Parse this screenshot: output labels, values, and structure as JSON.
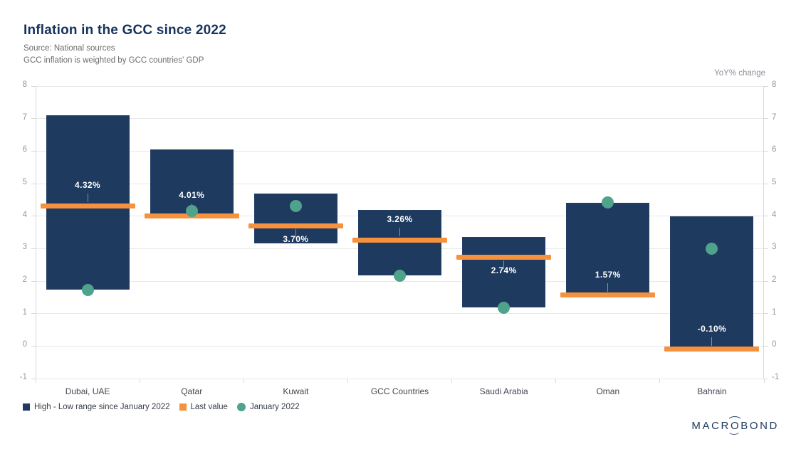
{
  "header": {
    "title": "Inflation in the GCC since 2022",
    "source_line1": "Source: National sources",
    "source_line2": "GCC inflation is weighted by GCC countries' GDP"
  },
  "axis_unit_label": "YoY% change",
  "colors": {
    "bar": "#1E3A5F",
    "bar_edge": "#34517C",
    "last_value": "#F6923E",
    "jan_2022": "#4FA28C",
    "title": "#16335E",
    "subtitle": "#6C6C6C",
    "grid": "#E8E8E8",
    "axis_line": "#D9D9D9",
    "y_tick_text": "#95989F",
    "x_tick_text": "#42464E",
    "value_label_text": "#FFFFFF",
    "connector": "#8A8F99",
    "legend_text": "#363C45",
    "logo": "#1E3A5F"
  },
  "chart_data": {
    "type": "bar",
    "subtype": "high-low-range",
    "title": "Inflation in the GCC since 2022",
    "ylabel": "YoY% change",
    "ylim": [
      -1,
      8
    ],
    "yticks": [
      8,
      7,
      6,
      5,
      4,
      3,
      2,
      1,
      0,
      -1
    ],
    "grid": true,
    "legend_position": "bottom-left",
    "categories": [
      "Dubai, UAE",
      "Qatar",
      "Kuwait",
      "GCC Countries",
      "Saudi Arabia",
      "Oman",
      "Bahrain"
    ],
    "series": [
      {
        "name": "High - Low range since January 2022",
        "type": "range-bar",
        "high": [
          7.1,
          6.05,
          4.7,
          4.2,
          3.35,
          4.4,
          4.0
        ],
        "low": [
          1.73,
          4.03,
          3.17,
          2.17,
          1.2,
          1.62,
          -0.05
        ]
      },
      {
        "name": "Last value",
        "type": "level-marker",
        "values": [
          4.32,
          4.01,
          3.7,
          3.26,
          2.74,
          1.57,
          -0.1
        ],
        "labels": [
          "4.32%",
          "4.01%",
          "3.70%",
          "3.26%",
          "2.74%",
          "1.57%",
          "-0.10%"
        ],
        "label_position": [
          "above",
          "above",
          "below",
          "above",
          "below",
          "above",
          "above"
        ]
      },
      {
        "name": "January 2022",
        "type": "point",
        "values": [
          1.73,
          4.15,
          4.3,
          2.16,
          1.18,
          4.41,
          3.0
        ]
      }
    ],
    "legend": [
      {
        "label": "High - Low range since January 2022",
        "swatch": "square"
      },
      {
        "label": "Last value",
        "swatch": "square"
      },
      {
        "label": "January 2022",
        "swatch": "circle"
      }
    ]
  },
  "branding": {
    "logo_pre": "MACR",
    "logo_o": "O",
    "logo_post": "BOND"
  }
}
